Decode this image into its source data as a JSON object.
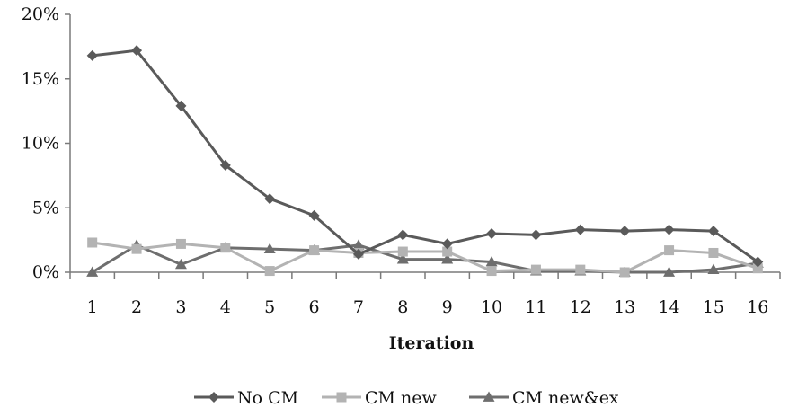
{
  "chart_data": {
    "type": "line",
    "title": "",
    "xlabel": "Iteration",
    "ylabel": "",
    "categories": [
      "1",
      "2",
      "3",
      "4",
      "5",
      "6",
      "7",
      "8",
      "9",
      "10",
      "11",
      "12",
      "13",
      "14",
      "15",
      "16"
    ],
    "y_ticks": [
      "0%",
      "5%",
      "10%",
      "15%",
      "20%"
    ],
    "ylim": [
      0,
      20
    ],
    "grid": false,
    "legend_position": "bottom",
    "series": [
      {
        "name": "No CM",
        "color": "#5a5a5a",
        "marker": "diamond",
        "values": [
          16.8,
          17.2,
          12.9,
          8.3,
          5.7,
          4.4,
          1.4,
          2.9,
          2.2,
          3.0,
          2.9,
          3.3,
          3.2,
          3.3,
          3.2,
          0.8
        ]
      },
      {
        "name": "CM new",
        "color": "#b3b3b3",
        "marker": "square",
        "values": [
          2.3,
          1.8,
          2.2,
          1.9,
          0.1,
          1.7,
          1.5,
          1.6,
          1.6,
          0.1,
          0.2,
          0.2,
          0.0,
          1.7,
          1.5,
          0.3
        ]
      },
      {
        "name": "CM new&ex",
        "color": "#6e6e6e",
        "marker": "triangle",
        "values": [
          0.0,
          2.1,
          0.6,
          1.9,
          1.8,
          1.7,
          2.1,
          1.0,
          1.0,
          0.8,
          0.1,
          0.1,
          0.0,
          0.0,
          0.2,
          0.7
        ]
      }
    ]
  }
}
